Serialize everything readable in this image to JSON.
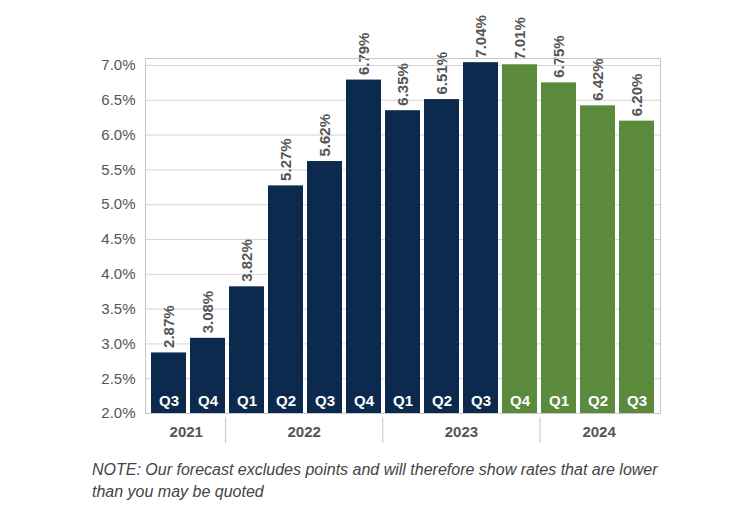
{
  "chart_data": {
    "type": "bar",
    "categories": [
      "Q3",
      "Q4",
      "Q1",
      "Q2",
      "Q3",
      "Q4",
      "Q1",
      "Q2",
      "Q3",
      "Q4",
      "Q1",
      "Q2",
      "Q3"
    ],
    "years": [
      "2021",
      "2021",
      "2022",
      "2022",
      "2022",
      "2022",
      "2023",
      "2023",
      "2023",
      "2023",
      "2024",
      "2024",
      "2024"
    ],
    "values": [
      2.87,
      3.08,
      3.82,
      5.27,
      5.62,
      6.79,
      6.35,
      6.51,
      7.04,
      7.01,
      6.75,
      6.42,
      6.2
    ],
    "value_labels": [
      "2.87%",
      "3.08%",
      "3.82%",
      "5.27%",
      "5.62%",
      "6.79%",
      "6.35%",
      "6.51%",
      "7.04%",
      "7.01%",
      "6.75%",
      "6.42%",
      "6.20%"
    ],
    "colors": [
      "#0c2a4d",
      "#0c2a4d",
      "#0c2a4d",
      "#0c2a4d",
      "#0c2a4d",
      "#0c2a4d",
      "#0c2a4d",
      "#0c2a4d",
      "#0c2a4d",
      "#5b8a3c",
      "#5b8a3c",
      "#5b8a3c",
      "#5b8a3c"
    ],
    "ylim": [
      2.0,
      7.1
    ],
    "yticks": [
      {
        "value": 2.0,
        "label": "2.0%"
      },
      {
        "value": 2.5,
        "label": "2.5%"
      },
      {
        "value": 3.0,
        "label": "3.0%"
      },
      {
        "value": 3.5,
        "label": "3.5%"
      },
      {
        "value": 4.0,
        "label": "4.0%"
      },
      {
        "value": 4.5,
        "label": "4.5%"
      },
      {
        "value": 5.0,
        "label": "5.0%"
      },
      {
        "value": 5.5,
        "label": "5.5%"
      },
      {
        "value": 6.0,
        "label": "6.0%"
      },
      {
        "value": 6.5,
        "label": "6.5%"
      },
      {
        "value": 7.0,
        "label": "7.0%"
      }
    ],
    "grid": true,
    "data_labels": true,
    "note": "NOTE: Our forecast excludes points and will therefore show rates that are lower than you may be quoted"
  }
}
